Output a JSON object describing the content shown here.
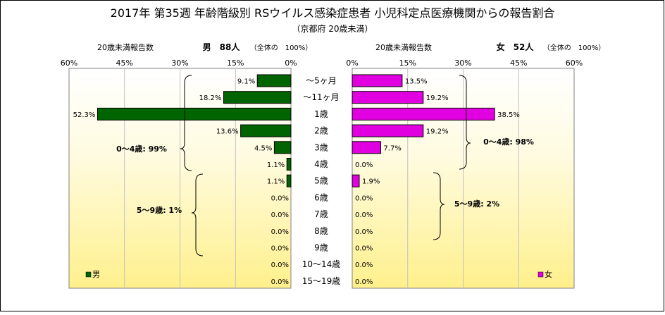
{
  "chart_data": {
    "type": "bar",
    "title": "2017年 第35週 年齢階級別 RSウイルス感染症患者 小児科定点医療機関からの報告割合",
    "subtitle": "（京都府 20歳未満）",
    "categories": [
      "～5ヶ月",
      "～11ヶ月",
      "1歳",
      "2歳",
      "3歳",
      "4歳",
      "5歳",
      "6歳",
      "7歳",
      "8歳",
      "9歳",
      "10～14歳",
      "15～19歳"
    ],
    "axis_ticks": [
      "60%",
      "45%",
      "30%",
      "15%",
      "0%"
    ],
    "axis_ticks_right": [
      "0%",
      "15%",
      "30%",
      "45%",
      "60%"
    ],
    "xlim": [
      0,
      60
    ],
    "grid": true,
    "series": [
      {
        "name": "男",
        "side": "left",
        "color": "#006400",
        "header_label": "20歳未満報告数",
        "header_title": "男　88人",
        "header_note": "（全体の　100%）",
        "values": [
          9.1,
          18.2,
          52.3,
          13.6,
          4.5,
          1.1,
          1.1,
          0.0,
          0.0,
          0.0,
          0.0,
          0.0,
          0.0
        ],
        "value_labels": [
          "9.1%",
          "18.2%",
          "52.3%",
          "13.6%",
          "4.5%",
          "1.1%",
          "1.1%",
          "0.0%",
          "0.0%",
          "0.0%",
          "0.0%",
          "0.0%",
          "0.0%"
        ],
        "legend": "男"
      },
      {
        "name": "女",
        "side": "right",
        "color": "#E000E0",
        "header_label": "20歳未満報告数",
        "header_title": "女　52人",
        "header_note": "（全体の　100%）",
        "values": [
          13.5,
          19.2,
          38.5,
          19.2,
          7.7,
          0.0,
          1.9,
          0.0,
          0.0,
          0.0,
          0.0,
          0.0,
          0.0
        ],
        "value_labels": [
          "13.5%",
          "19.2%",
          "38.5%",
          "19.2%",
          "7.7%",
          "0.0%",
          "1.9%",
          "0.0%",
          "0.0%",
          "0.0%",
          "0.0%",
          "0.0%",
          "0.0%"
        ],
        "legend": "女"
      }
    ],
    "annotations": {
      "male_0_4": "0～4歳: 99%",
      "male_5_9": "5～9歳: 1%",
      "female_0_4": "0～4歳: 98%",
      "female_5_9": "5～9歳: 2%"
    },
    "colors": {
      "plot_bg_top": "#ffffff",
      "plot_bg_bottom": "#fff08c",
      "grid": "#c0c0c0"
    }
  }
}
